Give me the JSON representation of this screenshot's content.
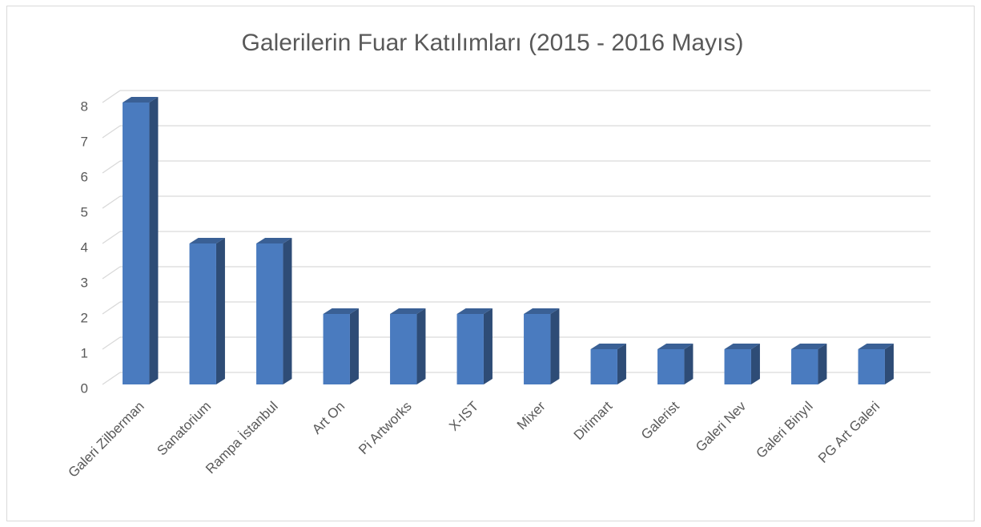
{
  "chart_data": {
    "type": "bar3d",
    "title": "Galerilerin Fuar Katılımları (2015 - 2016 Mayıs)",
    "categories": [
      "Galeri Zilberman",
      "Sanatorium",
      "Rampa İstanbul",
      "Art On",
      "Pi Artworks",
      "X-IST",
      "Mixer",
      "Dirimart",
      "Galerist",
      "Galeri Nev",
      "Galeri Binyıl",
      "PG Art Galeri"
    ],
    "values": [
      8,
      4,
      4,
      2,
      2,
      2,
      2,
      1,
      1,
      1,
      1,
      1
    ],
    "color": "#4a7bbf",
    "ylim": [
      0,
      8
    ],
    "yticks": [
      0,
      1,
      2,
      3,
      4,
      5,
      6,
      7,
      8
    ],
    "grid": true
  }
}
